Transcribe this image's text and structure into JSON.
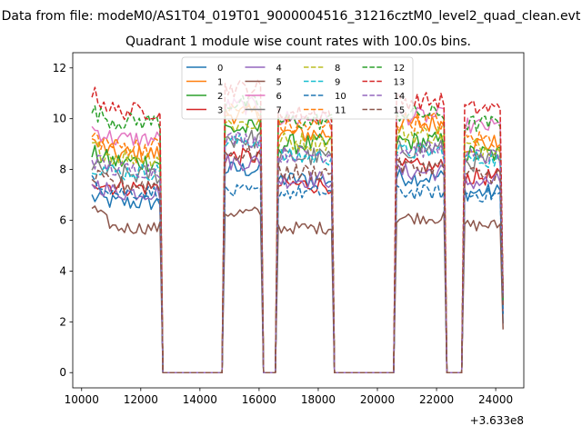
{
  "chart_data": {
    "type": "line",
    "suptitle": "Data from file: modeM0/AS1T04_019T01_9000004516_31216cztM0_level2_quad_clean.evt",
    "title": "Quadrant 1 module wise count rates with 100.0s bins.",
    "xlabel": "",
    "ylabel": "",
    "x_offset_label": "+3.633e8",
    "xlim": [
      9700,
      24950
    ],
    "ylim": [
      -0.6,
      12.6
    ],
    "x_ticks": [
      "10000",
      "12000",
      "14000",
      "16000",
      "18000",
      "20000",
      "22000",
      "24000"
    ],
    "x_tick_values": [
      10000,
      12000,
      14000,
      16000,
      18000,
      20000,
      22000,
      24000
    ],
    "y_ticks": [
      "0",
      "2",
      "4",
      "6",
      "8",
      "10",
      "12"
    ],
    "y_tick_values": [
      0,
      2,
      4,
      6,
      8,
      10,
      12
    ],
    "legend_position": "upper center",
    "bin_seconds": 100,
    "segments": [
      {
        "start": 10350,
        "end": 12650
      },
      {
        "start": 14850,
        "end": 16050
      },
      {
        "start": 16650,
        "end": 18450
      },
      {
        "start": 20650,
        "end": 22250
      },
      {
        "start": 22950,
        "end": 24250
      }
    ],
    "gap_value": 0,
    "series": [
      {
        "name": "0",
        "color": "#1f77b4",
        "dash": false,
        "levels": [
          6.7,
          8.0,
          7.6,
          7.7,
          7.1
        ],
        "start_offset": 0.2,
        "noise": 0.35
      },
      {
        "name": "1",
        "color": "#ff7f0e",
        "dash": false,
        "levels": [
          8.6,
          10.2,
          9.4,
          9.8,
          9.0
        ],
        "start_offset": 0.5,
        "noise": 0.4
      },
      {
        "name": "2",
        "color": "#2ca02c",
        "dash": false,
        "levels": [
          8.3,
          9.6,
          9.0,
          9.1,
          8.6
        ],
        "start_offset": 0.3,
        "noise": 0.4
      },
      {
        "name": "3",
        "color": "#d62728",
        "dash": false,
        "levels": [
          7.3,
          8.5,
          7.4,
          8.1,
          7.7
        ],
        "start_offset": 0.3,
        "noise": 0.35
      },
      {
        "name": "4",
        "color": "#9467bd",
        "dash": false,
        "levels": [
          7.1,
          8.3,
          7.6,
          7.9,
          7.5
        ],
        "start_offset": 0.4,
        "noise": 0.35
      },
      {
        "name": "5",
        "color": "#8c564b",
        "dash": false,
        "levels": [
          5.7,
          6.3,
          5.7,
          6.1,
          5.8
        ],
        "start_offset": 0.8,
        "noise": 0.25
      },
      {
        "name": "6",
        "color": "#e377c2",
        "dash": false,
        "levels": [
          9.2,
          10.5,
          10.0,
          10.1,
          9.7
        ],
        "start_offset": 0.4,
        "noise": 0.35
      },
      {
        "name": "7",
        "color": "#7f7f7f",
        "dash": false,
        "levels": [
          7.8,
          9.2,
          8.5,
          8.8,
          8.3
        ],
        "start_offset": 0.3,
        "noise": 0.4
      },
      {
        "name": "8",
        "color": "#bcbd22",
        "dash": true,
        "levels": [
          8.5,
          9.8,
          9.1,
          9.4,
          8.9
        ],
        "start_offset": 0.4,
        "noise": 0.4
      },
      {
        "name": "9",
        "color": "#17becf",
        "dash": true,
        "levels": [
          7.9,
          9.1,
          8.5,
          8.7,
          8.4
        ],
        "start_offset": 0.3,
        "noise": 0.35
      },
      {
        "name": "10",
        "color": "#1f77b4",
        "dash": true,
        "levels": [
          7.1,
          7.1,
          7.1,
          7.1,
          7.0
        ],
        "start_offset": 0.6,
        "noise": 0.3
      },
      {
        "name": "11",
        "color": "#ff7f0e",
        "dash": true,
        "levels": [
          8.9,
          10.3,
          9.7,
          9.9,
          9.2
        ],
        "start_offset": 0.4,
        "noise": 0.4
      },
      {
        "name": "12",
        "color": "#2ca02c",
        "dash": true,
        "levels": [
          9.9,
          10.6,
          9.9,
          10.2,
          9.8
        ],
        "start_offset": 0.4,
        "noise": 0.35
      },
      {
        "name": "13",
        "color": "#d62728",
        "dash": true,
        "levels": [
          10.3,
          11.2,
          10.2,
          10.7,
          10.4
        ],
        "start_offset": 0.7,
        "noise": 0.35
      },
      {
        "name": "14",
        "color": "#9467bd",
        "dash": true,
        "levels": [
          8.0,
          9.2,
          8.6,
          8.8,
          8.5
        ],
        "start_offset": 0.4,
        "noise": 0.35
      },
      {
        "name": "15",
        "color": "#8c564b",
        "dash": true,
        "levels": [
          7.4,
          8.6,
          7.9,
          8.1,
          7.8
        ],
        "start_offset": 0.3,
        "noise": 0.35
      }
    ]
  }
}
